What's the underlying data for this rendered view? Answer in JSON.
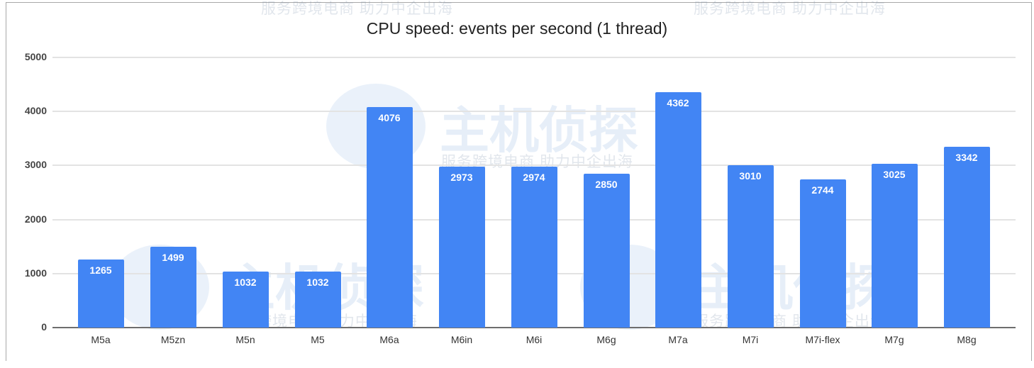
{
  "chart_data": {
    "type": "bar",
    "title": "CPU speed: events per second (1 thread)",
    "xlabel": "",
    "ylabel": "",
    "categories": [
      "M5a",
      "M5zn",
      "M5n",
      "M5",
      "M6a",
      "M6in",
      "M6i",
      "M6g",
      "M7a",
      "M7i",
      "M7i-flex",
      "M7g",
      "M8g"
    ],
    "values": [
      1265,
      1499,
      1032,
      1032,
      4076,
      2973,
      2974,
      2850,
      4362,
      3010,
      2744,
      3025,
      3342
    ],
    "ylim": [
      0,
      5000
    ],
    "yticks": [
      0,
      1000,
      2000,
      3000,
      4000,
      5000
    ],
    "grid": true,
    "legend": null,
    "data_labels": true,
    "bar_color": "#4285f4"
  },
  "chart": {
    "title": "CPU speed: events per second (1 thread)",
    "yticks": [
      "5000",
      "4000",
      "3000",
      "2000",
      "1000",
      "0"
    ],
    "bars": [
      {
        "label": "M5a",
        "value": "1265"
      },
      {
        "label": "M5zn",
        "value": "1499"
      },
      {
        "label": "M5n",
        "value": "1032"
      },
      {
        "label": "M5",
        "value": "1032"
      },
      {
        "label": "M6a",
        "value": "4076"
      },
      {
        "label": "M6in",
        "value": "2973"
      },
      {
        "label": "M6i",
        "value": "2974"
      },
      {
        "label": "M6g",
        "value": "2850"
      },
      {
        "label": "M7a",
        "value": "4362"
      },
      {
        "label": "M7i",
        "value": "3010"
      },
      {
        "label": "M7i-flex",
        "value": "2744"
      },
      {
        "label": "M7g",
        "value": "3025"
      },
      {
        "label": "M8g",
        "value": "3342"
      }
    ]
  },
  "watermark": {
    "brand": "主机侦探",
    "slogan": "服务跨境电商 助力中企出海"
  }
}
